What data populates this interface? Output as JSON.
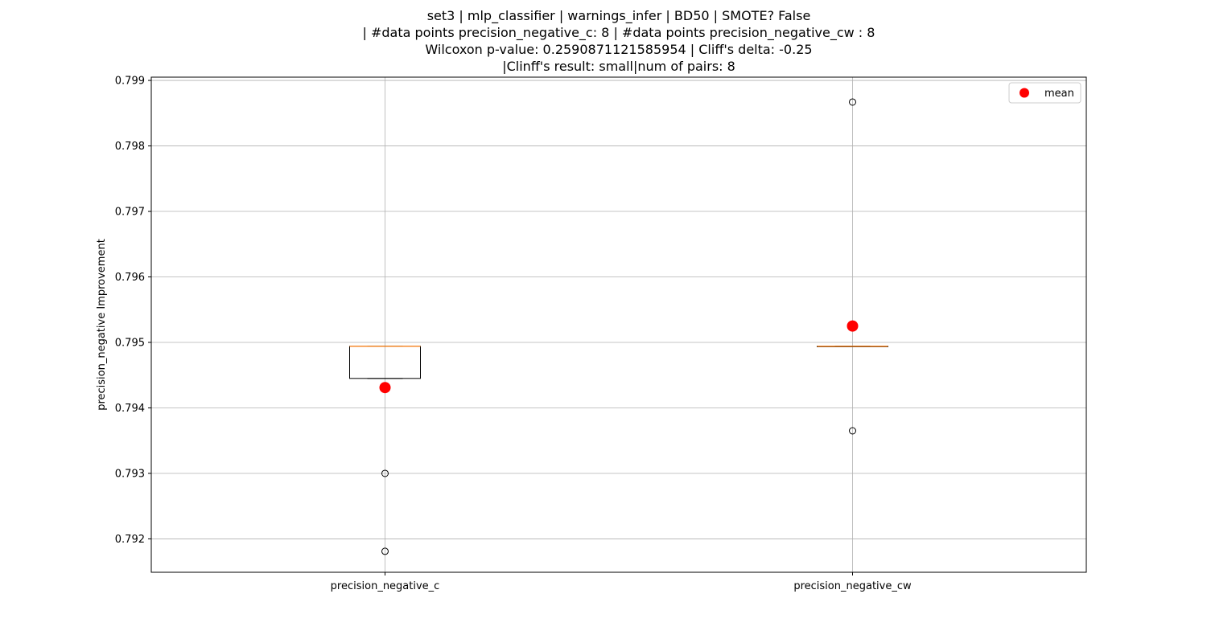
{
  "chart_data": {
    "type": "box",
    "title_lines": [
      "set3 | mlp_classifier | warnings_infer | BD50 | SMOTE? False",
      "| #data points precision_negative_c: 8 | #data points precision_negative_cw : 8",
      "Wilcoxon p-value: 0.2590871121585954 | Cliff's delta: -0.25",
      "|Clinff's result: small|num of pairs: 8"
    ],
    "xlabel": "",
    "ylabel": "precision_negative Improvement",
    "ylim": [
      0.79149,
      0.79905
    ],
    "yticks": [
      "0.792",
      "0.793",
      "0.794",
      "0.795",
      "0.796",
      "0.797",
      "0.798",
      "0.799"
    ],
    "grid": true,
    "legend": {
      "position": "upper right",
      "entries": [
        {
          "label": "mean",
          "color": "#ff0000",
          "marker": "circle"
        }
      ]
    },
    "colors": {
      "median": "#ff7f0e",
      "mean": "#ff0000",
      "box": "#000000",
      "grid": "#b0b0b0"
    },
    "categories": [
      "precision_negative_c",
      "precision_negative_cw"
    ],
    "boxes": [
      {
        "name": "precision_negative_c",
        "q1": 0.79445,
        "median": 0.79494,
        "q3": 0.79494,
        "whisker_low": 0.79445,
        "whisker_high": 0.79494,
        "mean": 0.79431,
        "outliers": [
          0.793,
          0.79181
        ]
      },
      {
        "name": "precision_negative_cw",
        "q1": 0.79494,
        "median": 0.79494,
        "q3": 0.79494,
        "whisker_low": 0.79494,
        "whisker_high": 0.79494,
        "mean": 0.79525,
        "outliers": [
          0.79867,
          0.79365
        ]
      }
    ]
  }
}
